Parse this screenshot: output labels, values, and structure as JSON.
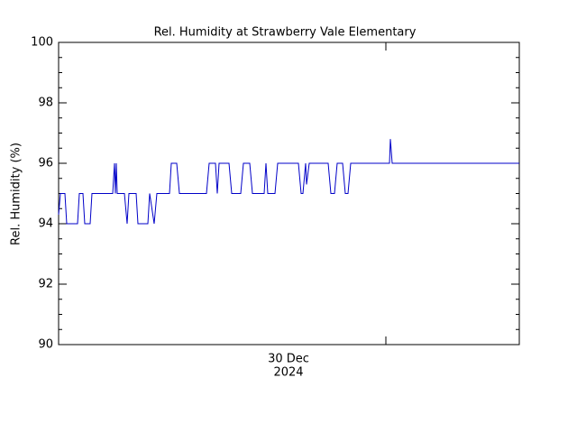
{
  "chart_data": {
    "type": "line",
    "title": "Rel. Humidity at Strawberry Vale Elementary",
    "ylabel": "Rel. Humidity (%)",
    "xlabel": [
      "30 Dec",
      "2024"
    ],
    "xlim": [
      0,
      511
    ],
    "xticks": [
      363
    ],
    "ylim": [
      90,
      100
    ],
    "yticks": [
      90,
      92,
      94,
      96,
      98,
      100
    ],
    "series": [
      {
        "color": "#0000c8",
        "x": [
          0,
          2,
          7,
          9,
          21,
          23,
          27,
          29,
          35,
          37,
          60,
          62,
          63,
          64,
          65,
          73,
          76,
          78,
          86,
          88,
          99,
          101,
          106,
          109,
          123,
          125,
          131,
          134,
          164,
          167,
          174,
          176,
          178,
          189,
          192,
          202,
          205,
          212,
          215,
          228,
          230,
          232,
          240,
          243,
          266,
          269,
          271,
          274,
          275,
          278,
          299,
          302,
          306,
          309,
          315,
          318,
          321,
          324,
          367,
          368,
          370,
          511
        ],
        "values": [
          94.3,
          95,
          95,
          94,
          94,
          95,
          95,
          94,
          94,
          95,
          95,
          96,
          95,
          96,
          95,
          95,
          94,
          95,
          95,
          94,
          94,
          95,
          94,
          95,
          95,
          96,
          96,
          95,
          95,
          96,
          96,
          95,
          96,
          96,
          95,
          95,
          96,
          96,
          95,
          95,
          96,
          95,
          95,
          96,
          96,
          95,
          95,
          96,
          95.3,
          96,
          96,
          95,
          95,
          96,
          96,
          95,
          95,
          96,
          96,
          96.8,
          96,
          96
        ]
      }
    ]
  }
}
